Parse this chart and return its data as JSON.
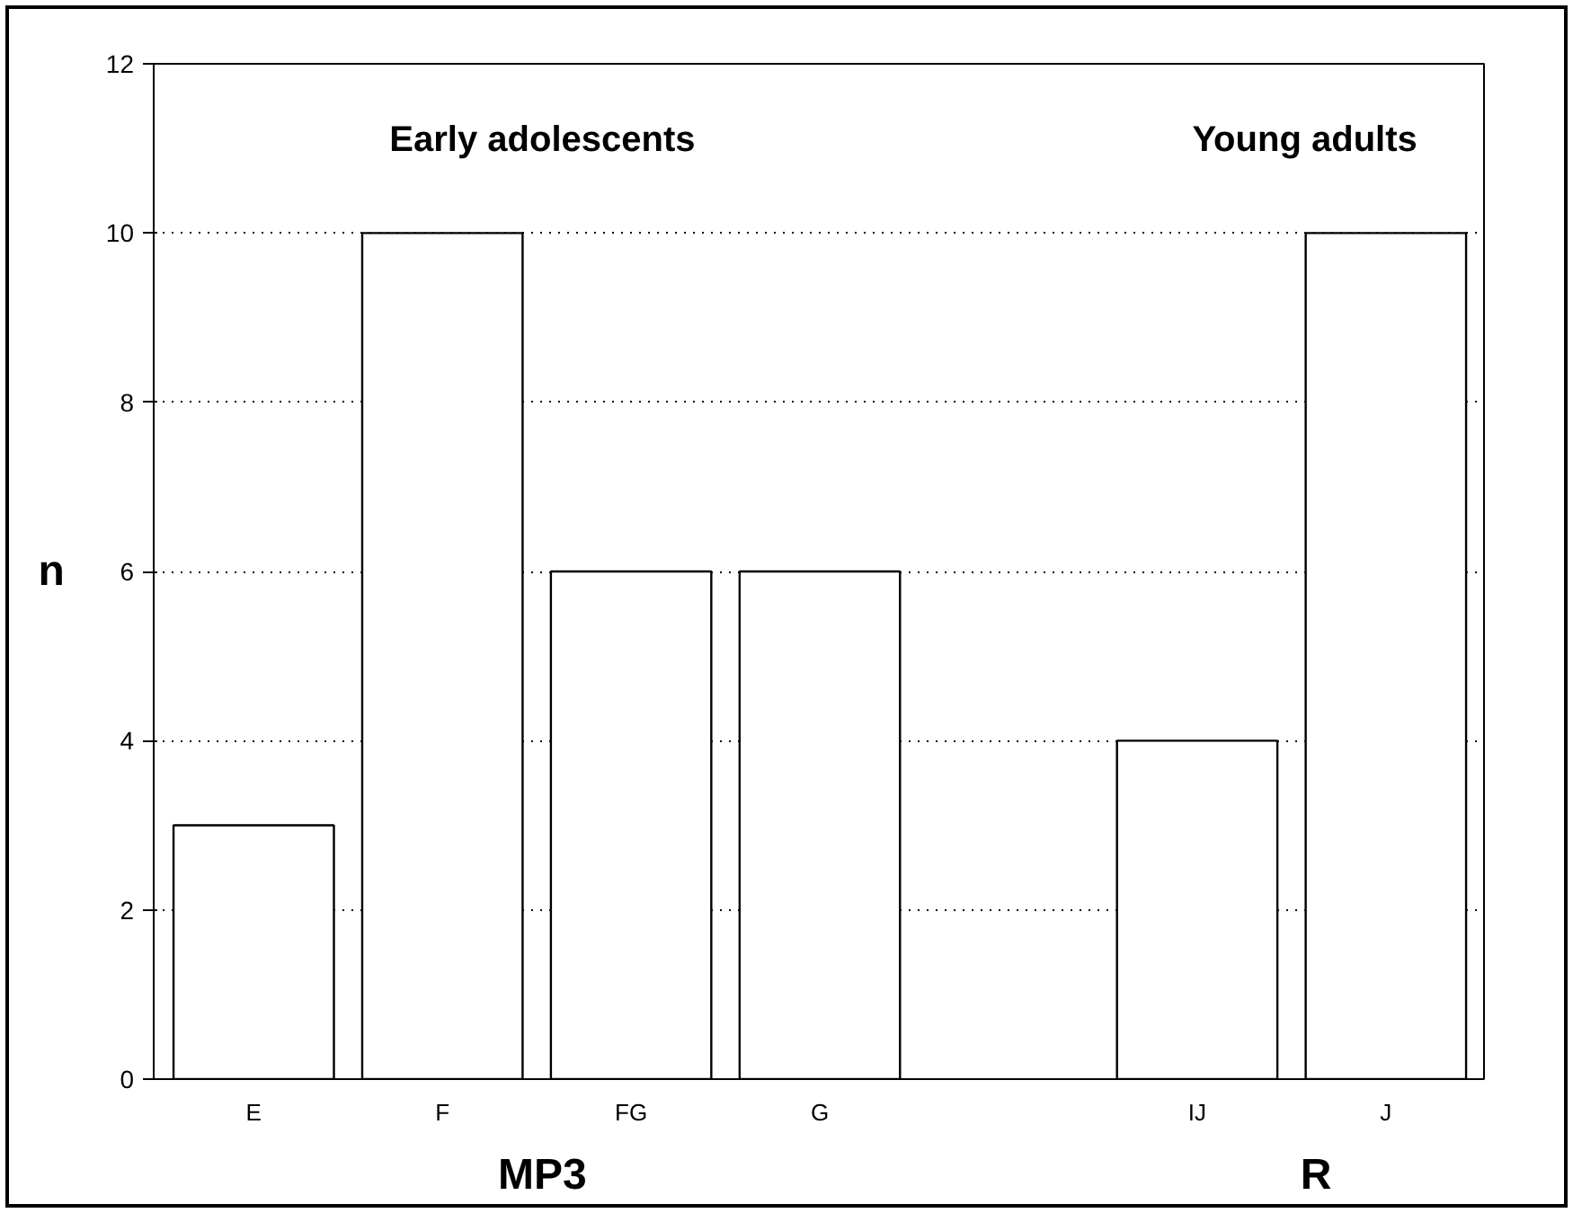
{
  "chart_data": {
    "type": "bar",
    "ylabel": "n",
    "categories": [
      "E",
      "F",
      "FG",
      "G",
      null,
      "IJ",
      "J"
    ],
    "values": [
      3,
      10,
      6,
      6,
      null,
      4,
      10
    ],
    "color": "#ffffff",
    "ylim": [
      0,
      12
    ],
    "yticks": [
      0,
      2,
      4,
      6,
      8,
      10,
      12
    ],
    "grid": "y",
    "annotations": [
      "Early adolescents",
      "Young adults",
      "MP3",
      "R"
    ]
  }
}
